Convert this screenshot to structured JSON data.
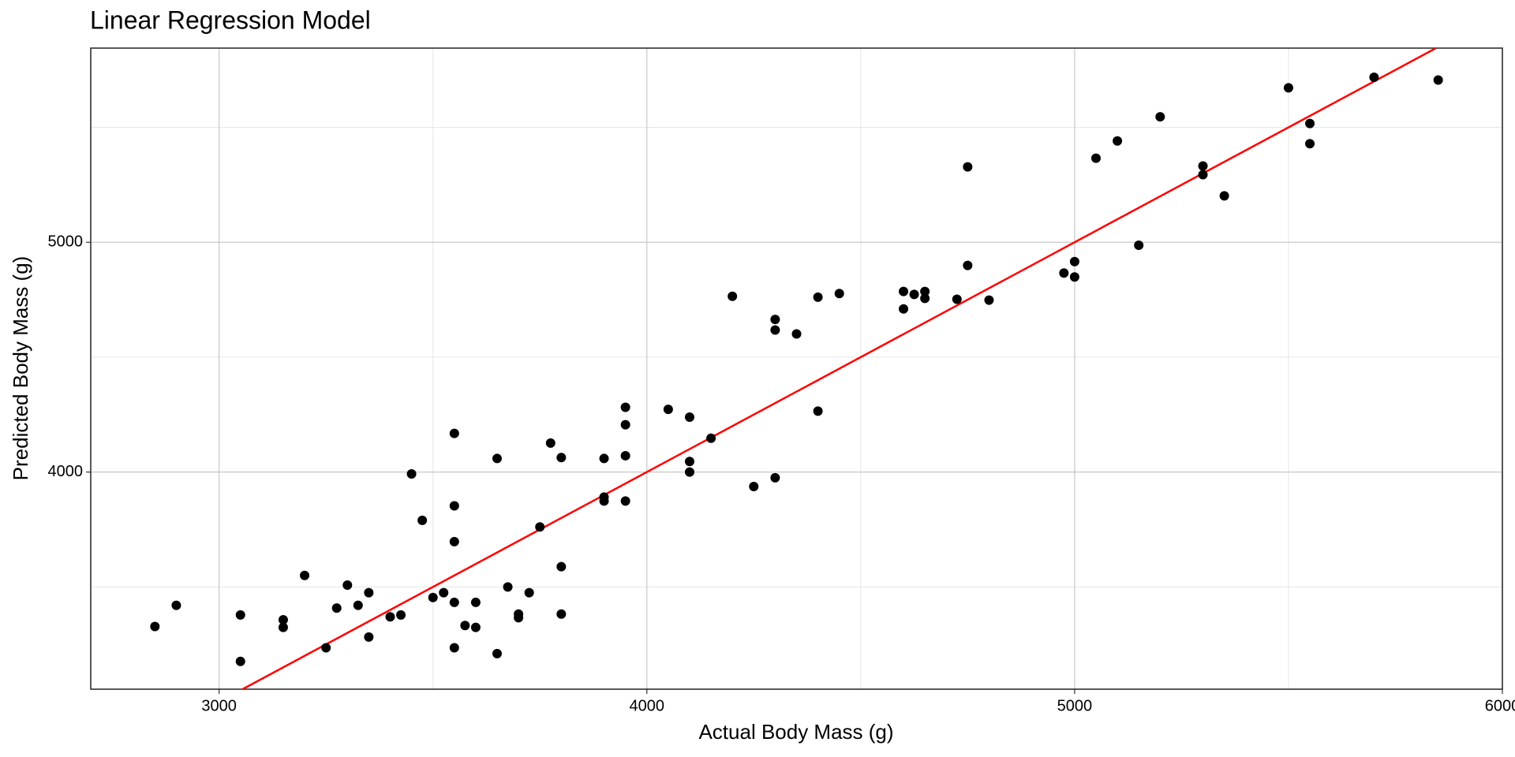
{
  "chart_data": {
    "type": "scatter",
    "title": "Linear Regression Model",
    "x_label": "Actual Body Mass (g)",
    "y_label": "Predicted Body Mass (g)",
    "x": [
      2850,
      2900,
      3050,
      3050,
      3150,
      3150,
      3200,
      3250,
      3275,
      3300,
      3325,
      3350,
      3350,
      3400,
      3425,
      3450,
      3475,
      3500,
      3525,
      3550,
      3550,
      3550,
      3550,
      3550,
      3575,
      3600,
      3600,
      3650,
      3650,
      3675,
      3700,
      3700,
      3725,
      3750,
      3775,
      3800,
      3800,
      3800,
      3900,
      3900,
      3900,
      3950,
      3950,
      3950,
      3950,
      4050,
      4100,
      4100,
      4100,
      4150,
      4200,
      4250,
      4300,
      4300,
      4300,
      4350,
      4400,
      4400,
      4450,
      4600,
      4600,
      4625,
      4650,
      4650,
      4725,
      4750,
      4750,
      4800,
      4975,
      5000,
      5000,
      5050,
      5100,
      5150,
      5200,
      5300,
      5300,
      5350,
      5500,
      5550,
      5550,
      5700,
      5850
    ],
    "values": [
      3328,
      3420,
      3378,
      3176,
      3357,
      3324,
      3550,
      3235,
      3408,
      3508,
      3420,
      3282,
      3475,
      3370,
      3378,
      3992,
      3790,
      3454,
      3475,
      4168,
      3853,
      3697,
      3433,
      3235,
      3332,
      3433,
      3324,
      4059,
      3210,
      3500,
      3382,
      3366,
      3475,
      3761,
      4126,
      4063,
      3588,
      3382,
      4059,
      3891,
      3874,
      4282,
      4206,
      4071,
      3874,
      4273,
      4239,
      4046,
      4000,
      4147,
      4765,
      3937,
      4664,
      4618,
      3975,
      4601,
      4761,
      4265,
      4777,
      4786,
      4710,
      4773,
      4786,
      4756,
      4752,
      5328,
      4899,
      4748,
      4866,
      4916,
      4849,
      5366,
      5441,
      4987,
      5546,
      5332,
      5294,
      5202,
      5672,
      5517,
      5429,
      5718,
      5706
    ],
    "color": "#000000",
    "fit_line": {
      "slope": 1,
      "intercept": 0,
      "color": "#ff0000"
    },
    "xlim": [
      2700,
      6000
    ],
    "ylim": [
      3055,
      5845
    ],
    "xticks": [
      3000,
      4000,
      5000,
      6000
    ],
    "yticks": [
      4000,
      5000
    ],
    "x_minor_grid": [
      3500,
      4500,
      5500
    ],
    "y_minor_grid": [
      3500,
      4500,
      5500
    ],
    "grid": true
  }
}
